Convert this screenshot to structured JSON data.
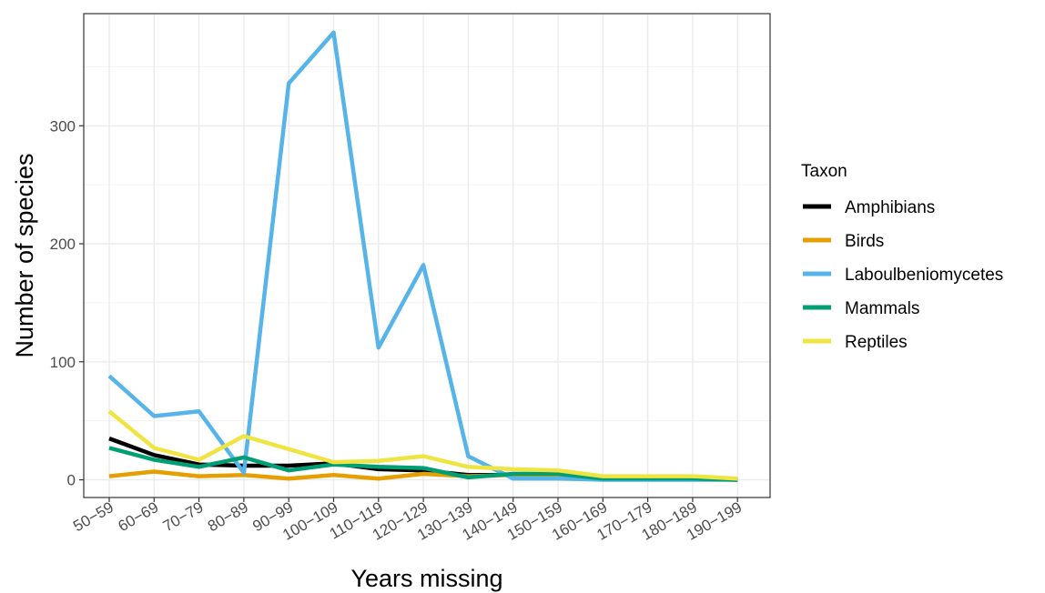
{
  "chart_data": {
    "type": "line",
    "xlabel": "Years missing",
    "ylabel": "Number of species",
    "ylim": [
      -15,
      395
    ],
    "yticks": [
      0,
      100,
      200,
      300
    ],
    "grid": true,
    "legend_title": "Taxon",
    "legend_position": "right",
    "categories": [
      "50−59",
      "60−69",
      "70−79",
      "80−89",
      "90−99",
      "100−109",
      "110−119",
      "120−129",
      "130−139",
      "140−149",
      "150−159",
      "160−169",
      "170−179",
      "180−189",
      "190−199"
    ],
    "series": [
      {
        "name": "Amphibians",
        "color": "#000000",
        "values": [
          35,
          21,
          13,
          12,
          12,
          14,
          9,
          8,
          4,
          4,
          4,
          1,
          1,
          1,
          0
        ]
      },
      {
        "name": "Birds",
        "color": "#E69F00",
        "values": [
          3,
          7,
          3,
          4,
          1,
          4,
          1,
          5,
          3,
          4,
          2,
          1,
          1,
          1,
          0
        ]
      },
      {
        "name": "Laboulbeniomycetes",
        "color": "#56B4E9",
        "values": [
          88,
          54,
          58,
          6,
          336,
          379,
          112,
          182,
          20,
          1,
          1,
          0,
          0,
          0,
          0
        ]
      },
      {
        "name": "Mammals",
        "color": "#009E73",
        "values": [
          27,
          17,
          11,
          19,
          8,
          13,
          11,
          10,
          2,
          5,
          5,
          1,
          1,
          1,
          0
        ]
      },
      {
        "name": "Reptiles",
        "color": "#F0E442",
        "values": [
          58,
          27,
          17,
          37,
          26,
          15,
          16,
          20,
          11,
          9,
          8,
          3,
          3,
          3,
          1
        ]
      }
    ]
  }
}
